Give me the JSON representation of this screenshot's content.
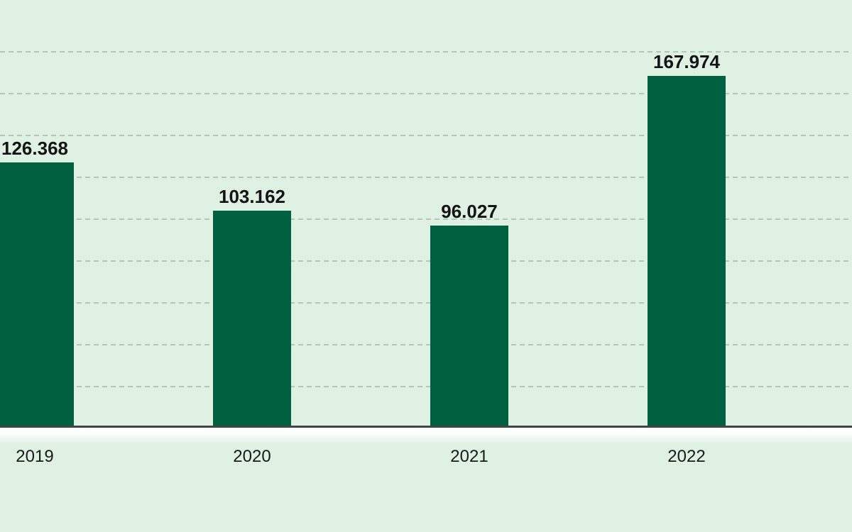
{
  "chart_data": {
    "type": "bar",
    "categories": [
      "2019",
      "2020",
      "2021",
      "2022"
    ],
    "values": [
      126368,
      103162,
      96027,
      167974
    ],
    "value_labels": [
      "126.368",
      "103.162",
      "96.027",
      "167.974"
    ],
    "title": "",
    "xlabel": "",
    "ylabel": "",
    "ylim": [
      0,
      200000
    ],
    "gridline_step": 20000,
    "gridline_style": "dashed horizontal",
    "legend_position": "none",
    "notes": "single series; first bar clipped at left image edge; no y-axis tick labels shown",
    "colors": {
      "background": "#def1e3",
      "bar": "#00603f",
      "gridline": "#b6c6ba",
      "axis_line": "#3e4644",
      "label_text": "#141414"
    }
  }
}
